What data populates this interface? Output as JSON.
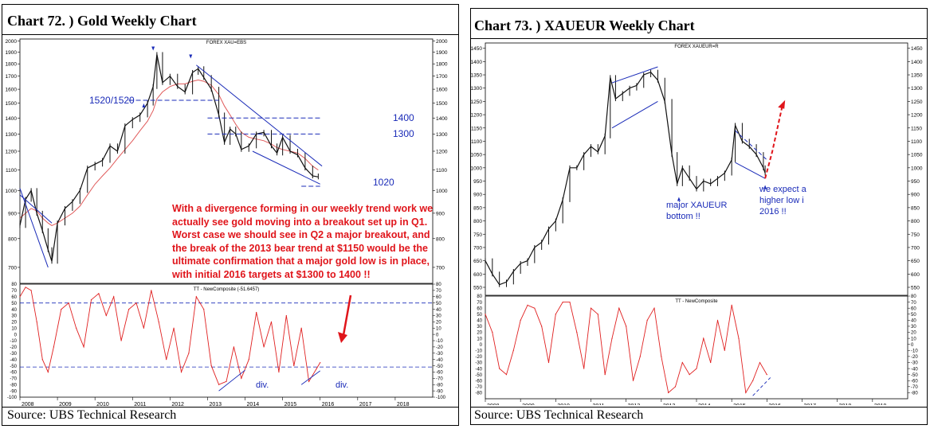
{
  "colors": {
    "candle": "#111111",
    "ma": "#e05a5a",
    "osc": "#e02020",
    "annotation": "#1a2bb8",
    "note": "#e0151b",
    "grid": "#aaaaaa"
  },
  "left": {
    "title": "Chart 72. )  Gold Weekly Chart",
    "source": "Source: UBS Technical Research",
    "series_label": "FOREX XAU=EBS",
    "osc_label": "TT - NewComposite (-51.6457)",
    "level_label_main": "1520/1520",
    "level_1400": "1400",
    "level_1300": "1300",
    "level_1020": "1020",
    "div1": "div.",
    "div2": "div.",
    "note": "With a divergence forming in our weekly trend work we actually see gold moving into a breakout set up in Q1. Worst case we should see in Q2 a major breakout, and the break of the 2013 bear trend at $1150 would be the ultimate confirmation that a major gold low is in place, with initial 2016 targets at $1300 to 1400 !!"
  },
  "right": {
    "title": "Chart 73. )  XAUEUR Weekly Chart",
    "source": "Source: UBS Technical Research",
    "series_label": "FOREX XAUEUR=R",
    "osc_label": "TT - NewComposite",
    "note1_lines": [
      "major XAUEUR",
      "bottom !!"
    ],
    "note2_lines": [
      "we expect a",
      "higher low i",
      "2016 !!"
    ]
  },
  "chart_data": [
    {
      "type": "line",
      "title": "Gold Weekly Chart",
      "series_label": "FOREX XAU=EBS",
      "x_ticks": [
        "2008",
        "2009",
        "2010",
        "2011",
        "2012",
        "2013",
        "2014",
        "2015",
        "2016",
        "2017",
        "2018"
      ],
      "y_ticks": [
        700,
        800,
        900,
        1000,
        1100,
        1200,
        1300,
        1400,
        1500,
        1600,
        1700,
        1800,
        1900,
        2000
      ],
      "ylim": [
        650,
        2020
      ],
      "scale": "log",
      "x": [
        2008.0,
        2008.15,
        2008.3,
        2008.45,
        2008.6,
        2008.75,
        2008.85,
        2009.0,
        2009.2,
        2009.4,
        2009.6,
        2009.8,
        2010.0,
        2010.2,
        2010.4,
        2010.6,
        2010.8,
        2011.0,
        2011.2,
        2011.4,
        2011.55,
        2011.65,
        2011.8,
        2012.0,
        2012.2,
        2012.4,
        2012.6,
        2012.75,
        2012.9,
        2013.1,
        2013.3,
        2013.45,
        2013.6,
        2013.75,
        2013.9,
        2014.1,
        2014.3,
        2014.5,
        2014.7,
        2014.85,
        2015.0,
        2015.2,
        2015.4,
        2015.6,
        2015.8,
        2015.95
      ],
      "close": [
        850,
        960,
        1000,
        900,
        830,
        760,
        720,
        860,
        920,
        950,
        1000,
        1110,
        1130,
        1150,
        1230,
        1200,
        1350,
        1390,
        1420,
        1500,
        1620,
        1880,
        1650,
        1700,
        1620,
        1580,
        1730,
        1760,
        1690,
        1600,
        1420,
        1250,
        1330,
        1300,
        1210,
        1230,
        1300,
        1310,
        1230,
        1190,
        1280,
        1200,
        1180,
        1110,
        1070,
        1065
      ],
      "ma_close": [
        880,
        900,
        920,
        910,
        880,
        860,
        850,
        860,
        880,
        900,
        930,
        980,
        1030,
        1070,
        1110,
        1160,
        1210,
        1260,
        1320,
        1380,
        1450,
        1530,
        1580,
        1620,
        1640,
        1640,
        1660,
        1670,
        1660,
        1630,
        1560,
        1480,
        1420,
        1360,
        1310,
        1280,
        1270,
        1260,
        1240,
        1220,
        1210,
        1200,
        1190,
        1160,
        1120,
        1100
      ],
      "oscillator": {
        "name": "TT - NewComposite (-51.6457)",
        "ylim": [
          -100,
          80
        ],
        "y_ticks": [
          80,
          70,
          60,
          50,
          40,
          30,
          20,
          10,
          0,
          -10,
          -20,
          -30,
          -40,
          -50,
          -60,
          -70,
          -80,
          -90,
          -100
        ],
        "x": [
          2008.0,
          2008.15,
          2008.3,
          2008.45,
          2008.6,
          2008.75,
          2008.9,
          2009.1,
          2009.3,
          2009.5,
          2009.7,
          2009.9,
          2010.1,
          2010.3,
          2010.5,
          2010.7,
          2010.9,
          2011.1,
          2011.3,
          2011.5,
          2011.7,
          2011.9,
          2012.1,
          2012.3,
          2012.5,
          2012.7,
          2012.9,
          2013.1,
          2013.3,
          2013.5,
          2013.7,
          2013.9,
          2014.1,
          2014.3,
          2014.5,
          2014.7,
          2014.9,
          2015.1,
          2015.3,
          2015.5,
          2015.7,
          2015.9,
          2016.0
        ],
        "values": [
          60,
          75,
          70,
          20,
          -40,
          -60,
          -20,
          40,
          50,
          10,
          -20,
          55,
          65,
          30,
          60,
          -10,
          40,
          50,
          10,
          70,
          20,
          -40,
          10,
          -60,
          -30,
          60,
          40,
          -50,
          -80,
          -75,
          -20,
          -70,
          -40,
          35,
          -20,
          20,
          -60,
          30,
          -50,
          10,
          -75,
          -55,
          -45
        ],
        "bands": [
          50,
          -52
        ]
      },
      "annotations": [
        "1520/1520",
        "1400",
        "1300",
        "1020",
        "div.",
        "div."
      ]
    },
    {
      "type": "line",
      "title": "XAUEUR Weekly Chart",
      "series_label": "FOREX XAUEUR=R",
      "x_ticks": [
        "2008",
        "2009",
        "2010",
        "2011",
        "2012",
        "2013",
        "2014",
        "2015",
        "2016",
        "2017",
        "2018",
        "2019"
      ],
      "y_ticks": [
        550,
        600,
        650,
        700,
        750,
        800,
        850,
        900,
        950,
        1000,
        1050,
        1100,
        1150,
        1200,
        1250,
        1300,
        1350,
        1400,
        1450
      ],
      "ylim": [
        520,
        1470
      ],
      "x": [
        2008.0,
        2008.2,
        2008.4,
        2008.6,
        2008.8,
        2009.0,
        2009.2,
        2009.4,
        2009.6,
        2009.8,
        2010.0,
        2010.2,
        2010.4,
        2010.6,
        2010.8,
        2011.0,
        2011.2,
        2011.4,
        2011.55,
        2011.7,
        2011.9,
        2012.1,
        2012.3,
        2012.5,
        2012.7,
        2012.9,
        2013.1,
        2013.3,
        2013.45,
        2013.6,
        2013.8,
        2014.0,
        2014.2,
        2014.4,
        2014.6,
        2014.8,
        2015.0,
        2015.1,
        2015.3,
        2015.5,
        2015.7,
        2015.9,
        2015.95
      ],
      "close": [
        650,
        600,
        560,
        570,
        610,
        640,
        650,
        700,
        720,
        770,
        800,
        880,
        1000,
        1000,
        1050,
        1080,
        1060,
        1120,
        1340,
        1260,
        1280,
        1300,
        1310,
        1350,
        1360,
        1330,
        1250,
        1050,
        940,
        1000,
        960,
        920,
        950,
        940,
        960,
        980,
        1030,
        1160,
        1100,
        1080,
        1050,
        1000,
        980
      ],
      "forecast": {
        "x": [
          2015.95,
          2016.15,
          2016.45
        ],
        "y": [
          960,
          1060,
          1240
        ]
      },
      "oscillator": {
        "name": "TT - NewComposite",
        "ylim": [
          -90,
          80
        ],
        "y_ticks": [
          80,
          70,
          60,
          50,
          40,
          30,
          20,
          10,
          0,
          -10,
          -20,
          -30,
          -40,
          -50,
          -60,
          -70,
          -80
        ],
        "x": [
          2008.0,
          2008.2,
          2008.4,
          2008.6,
          2008.8,
          2009.0,
          2009.2,
          2009.4,
          2009.6,
          2009.8,
          2010.0,
          2010.2,
          2010.4,
          2010.6,
          2010.8,
          2011.0,
          2011.2,
          2011.4,
          2011.6,
          2011.8,
          2012.0,
          2012.2,
          2012.4,
          2012.6,
          2012.8,
          2013.0,
          2013.2,
          2013.4,
          2013.6,
          2013.8,
          2014.0,
          2014.2,
          2014.4,
          2014.6,
          2014.8,
          2015.0,
          2015.2,
          2015.4,
          2015.6,
          2015.8,
          2016.0
        ],
        "values": [
          50,
          20,
          -40,
          -50,
          -10,
          40,
          65,
          60,
          30,
          -30,
          50,
          70,
          70,
          20,
          -40,
          60,
          50,
          -50,
          10,
          60,
          30,
          -60,
          -20,
          40,
          60,
          -20,
          -80,
          -70,
          -30,
          -50,
          -40,
          10,
          -30,
          40,
          -10,
          65,
          10,
          -80,
          -60,
          -30,
          -50
        ]
      },
      "annotations": [
        "major XAUEUR bottom !!",
        "we expect a higher low i 2016 !!"
      ]
    }
  ]
}
